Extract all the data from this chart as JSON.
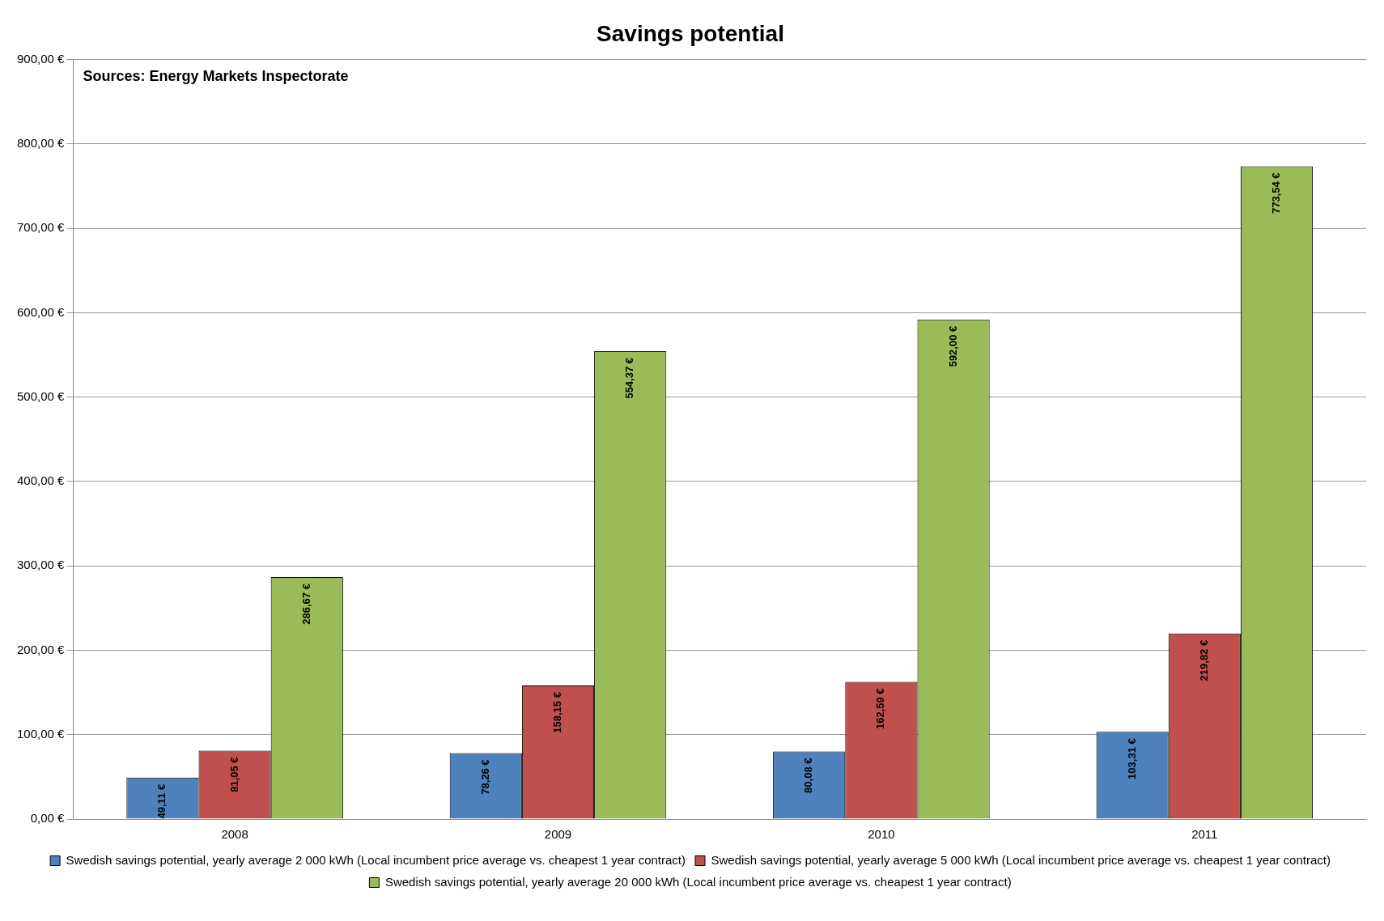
{
  "chart_data": {
    "type": "bar",
    "title": "Savings potential",
    "categories": [
      "2008",
      "2009",
      "2010",
      "2011"
    ],
    "series": [
      {
        "name": "Swedish savings potential, yearly average 2 000 kWh (Local incumbent price average vs. cheapest 1 year contract)",
        "color": "#4f81bd",
        "values": [
          49.11,
          78.26,
          80.08,
          103.31
        ],
        "value_labels": [
          "49,11 €",
          "78,26 €",
          "80,08 €",
          "103,31 €"
        ]
      },
      {
        "name": "Swedish savings potential, yearly average 5 000 kWh (Local incumbent price average vs. cheapest 1 year contract)",
        "color": "#c0504d",
        "values": [
          81.05,
          158.15,
          162.59,
          219.82
        ],
        "value_labels": [
          "81,05 €",
          "158,15 €",
          "162,59 €",
          "219,82 €"
        ]
      },
      {
        "name": "Swedish savings potential, yearly average 20 000 kWh (Local incumbent price average vs. cheapest 1 year contract)",
        "color": "#9bbb59",
        "values": [
          286.67,
          554.37,
          592.0,
          773.54
        ],
        "value_labels": [
          "286,67 €",
          "554,37 €",
          "592,00 €",
          "773,54 €"
        ]
      }
    ],
    "ylim": [
      0,
      900
    ],
    "yticks": [
      {
        "value": 0,
        "label": "0,00 €"
      },
      {
        "value": 100,
        "label": "100,00 €"
      },
      {
        "value": 200,
        "label": "200,00 €"
      },
      {
        "value": 300,
        "label": "300,00 €"
      },
      {
        "value": 400,
        "label": "400,00 €"
      },
      {
        "value": 500,
        "label": "500,00 €"
      },
      {
        "value": 600,
        "label": "600,00 €"
      },
      {
        "value": 700,
        "label": "700,00 €"
      },
      {
        "value": 800,
        "label": "800,00 €"
      },
      {
        "value": 900,
        "label": "900,00 €"
      }
    ],
    "grid": "y",
    "legend": "bottom",
    "annotations": [
      "Sources: Energy Markets Inspectorate"
    ]
  }
}
